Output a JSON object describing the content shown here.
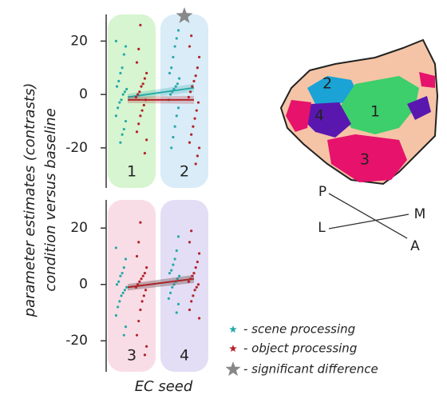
{
  "figure": {
    "ylabel": [
      "parameter estimates (contrasts)",
      "condition versus baseline"
    ],
    "xlabel": "EC seed",
    "significance_label": "- significant difference"
  },
  "chart_data": [
    {
      "type": "strip",
      "seeds": [
        "1",
        "2"
      ],
      "seed_colors": [
        "#d6f5d0",
        "#d9ecf7"
      ],
      "significant": [
        false,
        true
      ],
      "ylim": [
        -35,
        30
      ],
      "yticks": [
        -20,
        0,
        20
      ],
      "series": [
        {
          "name": "- scene processing",
          "color": "#27a9a9",
          "values": [
            [
              20,
              18,
              15,
              10,
              8,
              5,
              3,
              2,
              1,
              0,
              -2,
              -3,
              -5,
              -8,
              -10,
              -13,
              -15,
              -18
            ],
            [
              24,
              21,
              18,
              14,
              10,
              8,
              6,
              4,
              3,
              2,
              1,
              0,
              -2,
              -5,
              -8,
              -12,
              -16,
              -20
            ]
          ],
          "fit": [
            -1,
            2.5
          ]
        },
        {
          "name": "- object processing",
          "color": "#b2242a",
          "values": [
            [
              26,
              17,
              12,
              8,
              6,
              4,
              3,
              1,
              0,
              -1,
              -2,
              -4,
              -6,
              -8,
              -11,
              -14,
              -17,
              -22
            ],
            [
              22,
              18,
              14,
              10,
              7,
              5,
              3,
              1,
              -1,
              -3,
              -6,
              -9,
              -12,
              -15,
              -18,
              -20,
              -23,
              -26
            ]
          ],
          "fit": [
            -2,
            -2
          ]
        }
      ]
    },
    {
      "type": "strip",
      "seeds": [
        "3",
        "4"
      ],
      "seed_colors": [
        "#f9dde6",
        "#e3def5"
      ],
      "significant": [
        false,
        false
      ],
      "ylim": [
        -31,
        30
      ],
      "yticks": [
        -20,
        0,
        20
      ],
      "series": [
        {
          "color": "#27a9a9",
          "values": [
            [
              13,
              9,
              6,
              4,
              3,
              1,
              0,
              -1,
              -2,
              -3,
              -4,
              -6,
              -8,
              -11,
              -15,
              -18
            ],
            [
              17,
              12,
              9,
              7,
              5,
              4,
              3,
              2,
              1,
              0,
              -1,
              -3,
              -5,
              -7,
              -10
            ]
          ],
          "fit": [
            -1,
            2
          ]
        },
        {
          "color": "#b2242a",
          "values": [
            [
              22,
              15,
              10,
              6,
              4,
              3,
              2,
              1,
              0,
              -1,
              -2,
              -4,
              -6,
              -9,
              -13,
              -18,
              -22,
              -25
            ],
            [
              19,
              15,
              11,
              8,
              6,
              4,
              3,
              2,
              1,
              0,
              -1,
              -2,
              -4,
              -6,
              -9,
              -12
            ]
          ],
          "fit": [
            -1,
            2
          ]
        }
      ]
    }
  ],
  "brain_map": {
    "regions": [
      "1",
      "2",
      "3",
      "4"
    ],
    "orientation": [
      "P",
      "M",
      "L",
      "A"
    ]
  }
}
